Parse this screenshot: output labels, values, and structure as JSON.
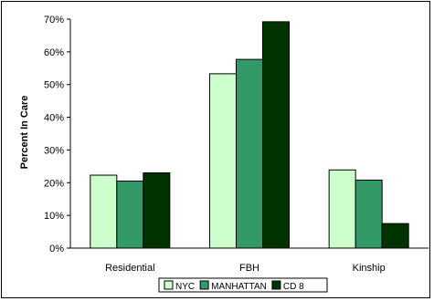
{
  "chart_data": {
    "type": "bar",
    "title": "",
    "xlabel": "",
    "ylabel": "Percent In Care",
    "ylim": [
      0,
      70
    ],
    "yticks": [
      "0%",
      "10%",
      "20%",
      "30%",
      "40%",
      "50%",
      "60%",
      "70%"
    ],
    "categories": [
      "Residential",
      "FBH",
      "Kinship"
    ],
    "series": [
      {
        "name": "NYC",
        "values": [
          22.3,
          53.3,
          23.9
        ],
        "color": "#ccffcc"
      },
      {
        "name": "MANHATTAN",
        "values": [
          20.5,
          57.7,
          20.8
        ],
        "color": "#339966"
      },
      {
        "name": "CD 8",
        "values": [
          23.0,
          69.2,
          7.5
        ],
        "color": "#003300"
      }
    ],
    "grid": false,
    "legend_position": "bottom"
  }
}
